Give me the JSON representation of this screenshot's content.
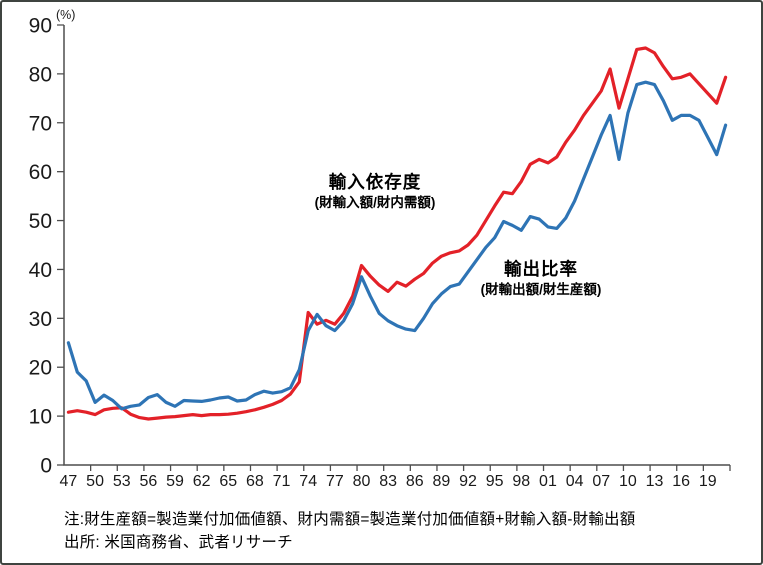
{
  "footnotes": {
    "note": "注:財生産額=製造業付加価値額、財内需額=製造業付加価値額+財輸入額-財輸出額",
    "source": "出所: 米国商務省、武者リサーチ"
  },
  "chart_data": {
    "type": "line",
    "unit_label": "(%)",
    "grid": false,
    "ylim": [
      0,
      90
    ],
    "y_ticks": [
      0,
      10,
      20,
      30,
      40,
      50,
      60,
      70,
      80,
      90
    ],
    "x_years": "1947-2021 (annual)",
    "x_start_year": 1947,
    "x_end_year": 2021,
    "x_tick_labels": [
      "47",
      "50",
      "53",
      "56",
      "59",
      "62",
      "65",
      "68",
      "71",
      "74",
      "77",
      "80",
      "83",
      "86",
      "89",
      "92",
      "95",
      "98",
      "01",
      "04",
      "07",
      "10",
      "13",
      "16",
      "19"
    ],
    "axis_color": "#4d4d4d",
    "series": [
      {
        "name": "輸入依存度",
        "sub_label": "(財輸入額/財内需額)",
        "color": "#e32128",
        "values": [
          10.8,
          11.1,
          10.8,
          10.3,
          11.3,
          11.6,
          11.7,
          10.4,
          9.7,
          9.4,
          9.6,
          9.8,
          9.9,
          10.1,
          10.3,
          10.1,
          10.3,
          10.3,
          10.4,
          10.6,
          10.9,
          11.3,
          11.8,
          12.4,
          13.2,
          14.5,
          17.0,
          31.2,
          28.8,
          29.6,
          28.8,
          31.0,
          34.5,
          40.8,
          38.6,
          36.8,
          35.5,
          37.4,
          36.6,
          38.0,
          39.2,
          41.3,
          42.7,
          43.4,
          43.8,
          45.0,
          47.0,
          50.0,
          53.0,
          55.8,
          55.5,
          58.0,
          61.5,
          62.5,
          61.8,
          63.0,
          66.0,
          68.5,
          71.5,
          74.0,
          76.5,
          81.0,
          73.0,
          79.0,
          85.0,
          85.3,
          84.3,
          81.5,
          79.0,
          79.3,
          80.0,
          78.0,
          76.0,
          74.0,
          79.3
        ]
      },
      {
        "name": "輸出比率",
        "sub_label": "(財輸出額/財生産額)",
        "color": "#2e74b5",
        "values": [
          25.0,
          19.0,
          17.2,
          12.8,
          14.3,
          13.2,
          11.5,
          12.0,
          12.3,
          13.8,
          14.4,
          12.8,
          12.0,
          13.2,
          13.1,
          13.0,
          13.3,
          13.7,
          13.9,
          13.1,
          13.3,
          14.4,
          15.1,
          14.7,
          15.0,
          15.8,
          19.5,
          27.5,
          30.8,
          28.5,
          27.5,
          29.5,
          33.0,
          38.5,
          34.5,
          31.0,
          29.5,
          28.5,
          27.8,
          27.5,
          30.0,
          33.0,
          35.0,
          36.5,
          37.0,
          39.5,
          42.0,
          44.5,
          46.5,
          49.8,
          49.0,
          48.0,
          50.8,
          50.3,
          48.7,
          48.4,
          50.5,
          54.0,
          58.5,
          63.0,
          67.5,
          71.5,
          62.5,
          72.0,
          77.8,
          78.3,
          77.8,
          74.5,
          70.5,
          71.5,
          71.5,
          70.5,
          67.0,
          63.5,
          69.5
        ]
      }
    ]
  }
}
